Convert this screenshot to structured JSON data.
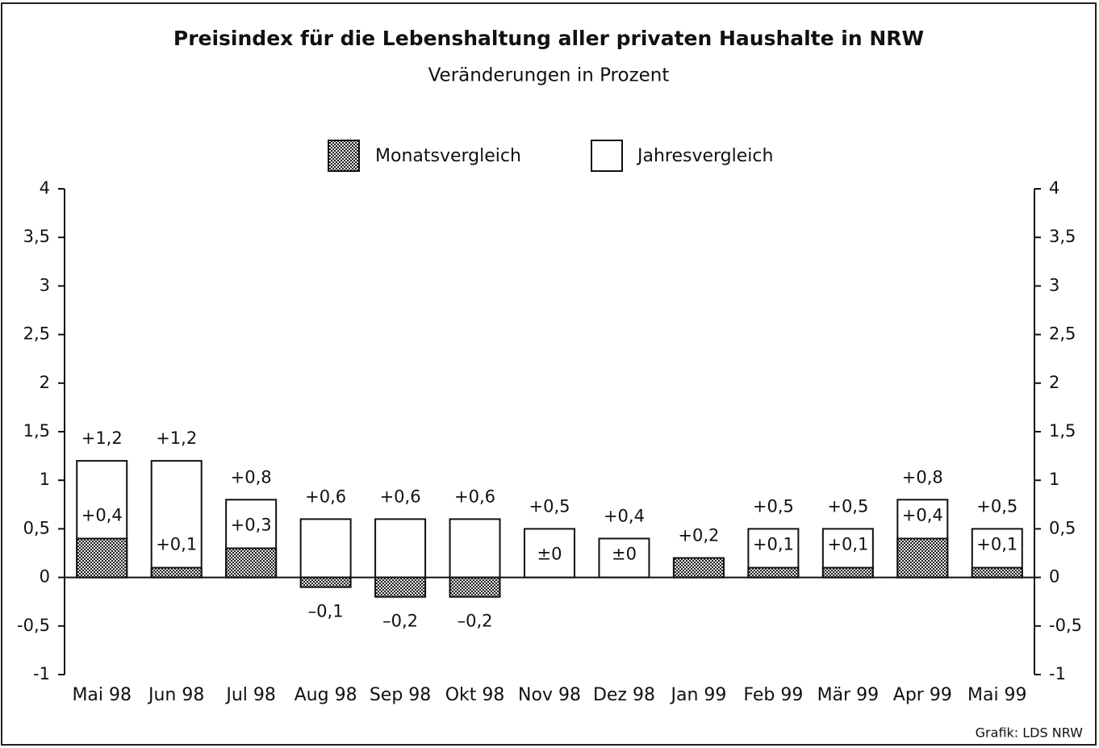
{
  "chart_data": {
    "type": "bar",
    "title": "Preisindex für die Lebenshaltung aller privaten Haushalte in NRW",
    "subtitle": "Veränderungen in Prozent",
    "categories": [
      "Mai 98",
      "Jun 98",
      "Jul 98",
      "Aug 98",
      "Sep 98",
      "Okt 98",
      "Nov 98",
      "Dez 98",
      "Jan 99",
      "Feb 99",
      "Mär 99",
      "Apr 99",
      "Mai 99"
    ],
    "series": [
      {
        "name": "Jahresvergleich",
        "color": "#ffffff",
        "values": [
          1.2,
          1.2,
          0.8,
          0.6,
          0.6,
          0.6,
          0.5,
          0.4,
          0.2,
          0.5,
          0.5,
          0.8,
          0.5
        ],
        "value_labels": [
          "+1,2",
          "+1,2",
          "+0,8",
          "+0,6",
          "+0,6",
          "+0,6",
          "+0,5",
          "+0,4",
          "+0,2",
          "+0,5",
          "+0,5",
          "+0,8",
          "+0,5"
        ]
      },
      {
        "name": "Monatsvergleich",
        "color": "#b0b0b0",
        "values": [
          0.4,
          0.1,
          0.3,
          -0.1,
          -0.2,
          -0.2,
          0,
          0,
          0.2,
          0.1,
          0.1,
          0.4,
          0.1
        ],
        "value_labels": [
          "+0,4",
          "+0,1",
          "+0,3",
          "–0,1",
          "–0,2",
          "–0,2",
          "±0",
          "±0",
          null,
          "+0,1",
          "+0,1",
          "+0,4",
          "+0,1"
        ]
      }
    ],
    "ylim": [
      -1,
      4
    ],
    "yticks": [
      -1,
      {
        "value": -0.5,
        "label": "-0,5"
      },
      0,
      {
        "value": 0.5,
        "label": "0,5"
      },
      1,
      {
        "value": 1.5,
        "label": "1,5"
      },
      2,
      {
        "value": 2.5,
        "label": "2,5"
      },
      3,
      {
        "value": 3.5,
        "label": "3,5"
      },
      4
    ],
    "source": "Grafik: LDS NRW"
  }
}
